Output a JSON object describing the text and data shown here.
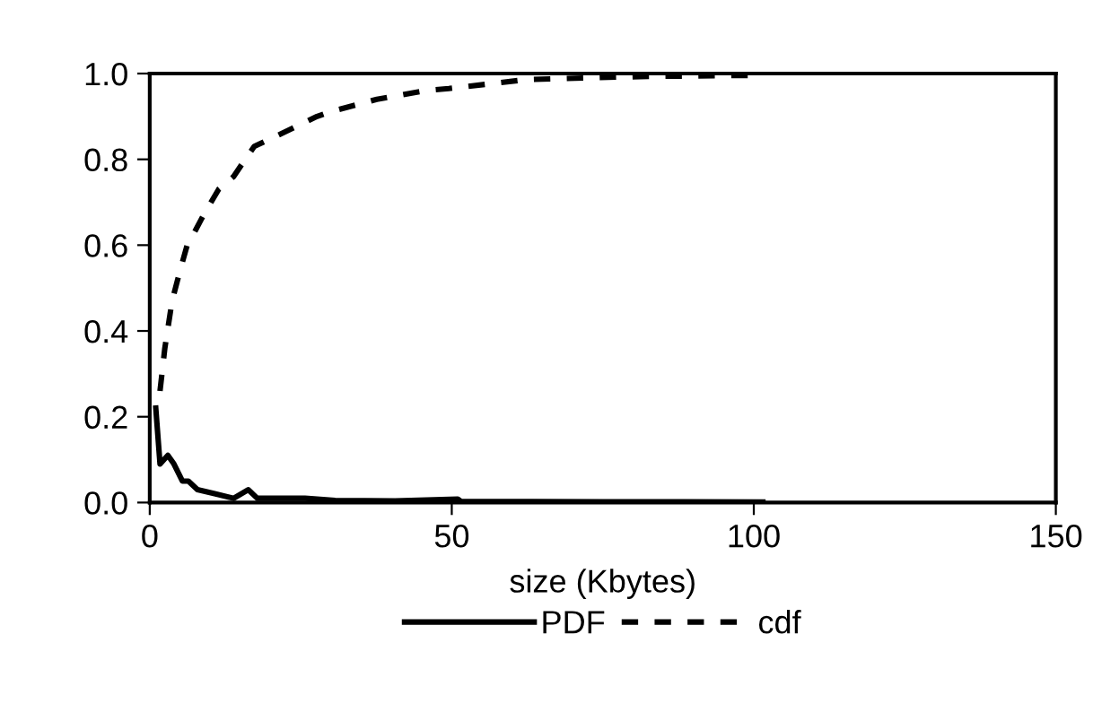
{
  "chart_data": {
    "type": "line",
    "xlabel": "size (Kbytes)",
    "xlim": [
      0,
      150
    ],
    "xticks": [
      0,
      50,
      100,
      150
    ],
    "ylim": [
      0,
      1.0
    ],
    "yticks": [
      {
        "value": 0,
        "label": "0.0"
      },
      {
        "value": 0.2,
        "label": "0.2"
      },
      {
        "value": 0.4,
        "label": "0.4"
      },
      {
        "value": 0.6,
        "label": "0.6"
      },
      {
        "value": 0.8,
        "label": "0.8"
      },
      {
        "value": 1.0,
        "label": "1.0"
      }
    ],
    "grid": false,
    "legend": "bottom",
    "marker": "none",
    "series": [
      {
        "name": "PDF",
        "color": "#000000",
        "line_style": "solid",
        "x": [
          1.0,
          1.7,
          3.0,
          4.0,
          5.4,
          6.4,
          7.9,
          10.9,
          13.9,
          16.3,
          17.8,
          25.7,
          30.7,
          40.6,
          51.0,
          51.5,
          75,
          101.5
        ],
        "values": [
          0.22,
          0.09,
          0.11,
          0.09,
          0.05,
          0.05,
          0.03,
          0.02,
          0.01,
          0.03,
          0.01,
          0.01,
          0.005,
          0.004,
          0.008,
          0.003,
          0.002,
          0.001
        ]
      },
      {
        "name": "cdf",
        "color": "#000000",
        "line_style": "dashed",
        "x": [
          1.7,
          2.5,
          3.7,
          5.0,
          6.2,
          7.4,
          8.9,
          11.4,
          13.9,
          15.8,
          17.3,
          21.8,
          27.7,
          29.7,
          37.6,
          45.5,
          49.5,
          62.4,
          81.2,
          101.5
        ],
        "values": [
          0.26,
          0.36,
          0.47,
          0.54,
          0.6,
          0.63,
          0.67,
          0.73,
          0.76,
          0.8,
          0.83,
          0.86,
          0.9,
          0.91,
          0.94,
          0.96,
          0.965,
          0.986,
          0.993,
          0.996
        ]
      }
    ]
  }
}
